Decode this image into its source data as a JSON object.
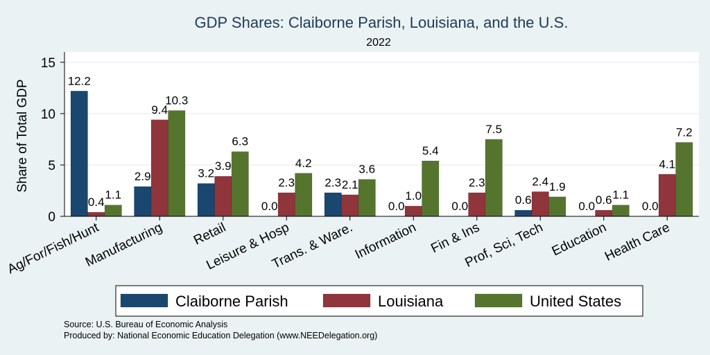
{
  "chart_data": {
    "type": "bar",
    "title": "GDP Shares: Claiborne Parish, Louisiana, and the U.S.",
    "subtitle": "2022",
    "ylabel": "Share of Total GDP",
    "xlabel": "",
    "ylim": [
      0,
      16
    ],
    "yticks": [
      0,
      5,
      10,
      15
    ],
    "grid": true,
    "legend_position": "bottom",
    "categories": [
      "Ag/For/Fish/Hunt",
      "Manufacturing",
      "Retail",
      "Leisure & Hosp",
      "Trans. & Ware.",
      "Information",
      "Fin & Ins",
      "Prof, Sci, Tech",
      "Education",
      "Health Care"
    ],
    "series": [
      {
        "name": "Claiborne Parish",
        "color": "#1a476f",
        "values": [
          12.2,
          2.9,
          3.2,
          0.0,
          2.3,
          0.0,
          0.0,
          0.6,
          0.0,
          0.0
        ],
        "labels": [
          "12.2",
          "2.9",
          "3.2",
          "0.0",
          "2.3",
          "0.0",
          "0.0",
          "0.6",
          "0.0",
          "0.0"
        ]
      },
      {
        "name": "Louisiana",
        "color": "#90353b",
        "values": [
          0.4,
          9.4,
          3.9,
          2.3,
          2.1,
          1.0,
          2.3,
          2.4,
          0.6,
          4.1
        ],
        "labels": [
          "0.4",
          "9.4",
          "3.9",
          "2.3",
          "2.1",
          "1.0",
          "2.3",
          "2.4",
          "0.6",
          "4.1"
        ]
      },
      {
        "name": "United States",
        "color": "#55752f",
        "values": [
          1.1,
          10.3,
          6.3,
          4.2,
          3.6,
          5.4,
          7.5,
          1.9,
          1.1,
          7.2
        ],
        "labels": [
          "1.1",
          "10.3",
          "6.3",
          "4.2",
          "3.6",
          "5.4",
          "7.5",
          "1.9",
          "1.1",
          "7.2"
        ]
      }
    ],
    "source_lines": [
      "Source: U.S. Bureau of Economic Analysis",
      "Produced by: National Economic Education Delegation (www.NEEDelegation.org)"
    ]
  }
}
